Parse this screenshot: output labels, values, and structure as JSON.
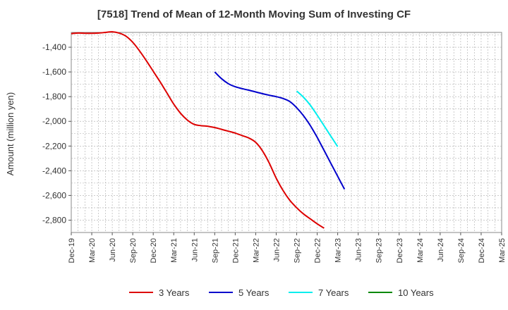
{
  "chart_data": {
    "type": "line",
    "title": "[7518]  Trend of Mean of 12-Month Moving Sum of Investing CF",
    "xlabel": "",
    "ylabel": "Amount (million yen)",
    "ylim": [
      -2900,
      -1280
    ],
    "yticks": [
      -1400,
      -1600,
      -1800,
      -2000,
      -2200,
      -2400,
      -2600,
      -2800
    ],
    "ytick_labels": [
      "-1,400",
      "-1,600",
      "-1,800",
      "-2,000",
      "-2,200",
      "-2,400",
      "-2,600",
      "-2,800"
    ],
    "xticks": [
      "Dec-19",
      "Mar-20",
      "Jun-20",
      "Sep-20",
      "Dec-20",
      "Mar-21",
      "Jun-21",
      "Sep-21",
      "Dec-21",
      "Mar-22",
      "Jun-22",
      "Sep-22",
      "Dec-22",
      "Mar-23",
      "Jun-23",
      "Sep-23",
      "Dec-23",
      "Mar-24",
      "Jun-24",
      "Sep-24",
      "Dec-24",
      "Mar-25"
    ],
    "grid": true,
    "legend_position": "bottom",
    "series": [
      {
        "name": "3 Years",
        "color": "#dd0000",
        "start_index": 0,
        "values": [
          -1290,
          -1285,
          -1287,
          -1287,
          -1285,
          -1280,
          -1275,
          -1285,
          -1310,
          -1360,
          -1430,
          -1510,
          -1595,
          -1680,
          -1770,
          -1860,
          -1935,
          -1990,
          -2025,
          -2035,
          -2040,
          -2050,
          -2065,
          -2080,
          -2095,
          -2115,
          -2135,
          -2170,
          -2240,
          -2340,
          -2460,
          -2560,
          -2640,
          -2700,
          -2750,
          -2790,
          -2830,
          -2865
        ]
      },
      {
        "name": "5 Years",
        "color": "#0000cc",
        "start_index": 21,
        "values": [
          -1600,
          -1655,
          -1695,
          -1720,
          -1735,
          -1748,
          -1762,
          -1776,
          -1789,
          -1800,
          -1815,
          -1840,
          -1890,
          -1955,
          -2035,
          -2130,
          -2235,
          -2340,
          -2445,
          -2550
        ]
      },
      {
        "name": "7 Years",
        "color": "#00eeee",
        "start_index": 33,
        "values": [
          -1755,
          -1805,
          -1870,
          -1950,
          -2035,
          -2120,
          -2205
        ]
      },
      {
        "name": "10 Years",
        "color": "#008800",
        "start_index": 0,
        "values": []
      }
    ]
  }
}
